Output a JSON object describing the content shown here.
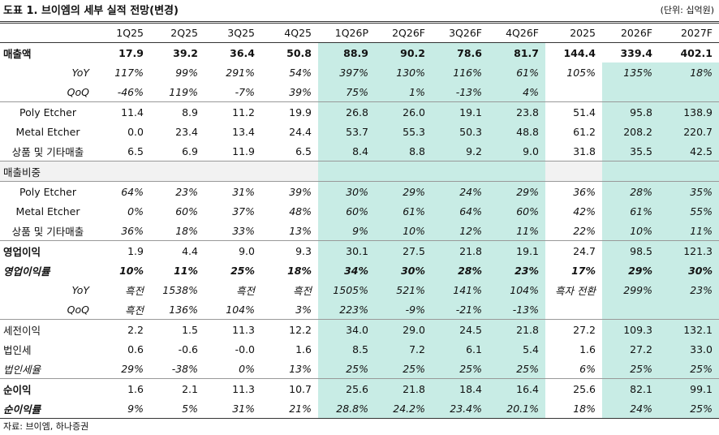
{
  "header": {
    "title": "도표 1. 브이엠의 세부 실적 전망(변경)",
    "unit": "(단위: 십억원)"
  },
  "table": {
    "columns": [
      "1Q25",
      "2Q25",
      "3Q25",
      "4Q25",
      "1Q26P",
      "2Q26F",
      "3Q26F",
      "4Q26F",
      "2025",
      "2026F",
      "2027F"
    ],
    "rows": [
      {
        "label": "매출액",
        "cells": [
          "17.9",
          "39.2",
          "36.4",
          "50.8",
          "88.9",
          "90.2",
          "78.6",
          "81.7",
          "144.4",
          "339.4",
          "402.1"
        ]
      },
      {
        "label": "YoY",
        "cells": [
          "117%",
          "99%",
          "291%",
          "54%",
          "397%",
          "130%",
          "116%",
          "61%",
          "105%",
          "135%",
          "18%"
        ]
      },
      {
        "label": "QoQ",
        "cells": [
          "-46%",
          "119%",
          "-7%",
          "39%",
          "75%",
          "1%",
          "-13%",
          "4%",
          null,
          null,
          null
        ]
      },
      {
        "label": "Poly Etcher",
        "cells": [
          "11.4",
          "8.9",
          "11.2",
          "19.9",
          "26.8",
          "26.0",
          "19.1",
          "23.8",
          "51.4",
          "95.8",
          "138.9"
        ]
      },
      {
        "label": "Metal Etcher",
        "cells": [
          "0.0",
          "23.4",
          "13.4",
          "24.4",
          "53.7",
          "55.3",
          "50.3",
          "48.8",
          "61.2",
          "208.2",
          "220.7"
        ]
      },
      {
        "label": "상품 및 기타매출",
        "cells": [
          "6.5",
          "6.9",
          "11.9",
          "6.5",
          "8.4",
          "8.8",
          "9.2",
          "9.0",
          "31.8",
          "35.5",
          "42.5"
        ]
      },
      {
        "label": "매출비중"
      },
      {
        "label": "Poly Etcher",
        "cells": [
          "64%",
          "23%",
          "31%",
          "39%",
          "30%",
          "29%",
          "24%",
          "29%",
          "36%",
          "28%",
          "35%"
        ]
      },
      {
        "label": "Metal Etcher",
        "cells": [
          "0%",
          "60%",
          "37%",
          "48%",
          "60%",
          "61%",
          "64%",
          "60%",
          "42%",
          "61%",
          "55%"
        ]
      },
      {
        "label": "상품 및 기타매출",
        "cells": [
          "36%",
          "18%",
          "33%",
          "13%",
          "9%",
          "10%",
          "12%",
          "11%",
          "22%",
          "10%",
          "11%"
        ]
      },
      {
        "label": "영업이익",
        "cells": [
          "1.9",
          "4.4",
          "9.0",
          "9.3",
          "30.1",
          "27.5",
          "21.8",
          "19.1",
          "24.7",
          "98.5",
          "121.3"
        ]
      },
      {
        "label": "영업이익률",
        "cells": [
          "10%",
          "11%",
          "25%",
          "18%",
          "34%",
          "30%",
          "28%",
          "23%",
          "17%",
          "29%",
          "30%"
        ]
      },
      {
        "label": "YoY",
        "cells": [
          "흑전",
          "1538%",
          "흑전",
          "흑전",
          "1505%",
          "521%",
          "141%",
          "104%",
          "흑자 전환",
          "299%",
          "23%"
        ]
      },
      {
        "label": "QoQ",
        "cells": [
          "흑전",
          "136%",
          "104%",
          "3%",
          "223%",
          "-9%",
          "-21%",
          "-13%",
          null,
          null,
          null
        ]
      },
      {
        "label": "세전이익",
        "cells": [
          "2.2",
          "1.5",
          "11.3",
          "12.2",
          "34.0",
          "29.0",
          "24.5",
          "21.8",
          "27.2",
          "109.3",
          "132.1"
        ]
      },
      {
        "label": "법인세",
        "cells": [
          "0.6",
          "-0.6",
          "-0.0",
          "1.6",
          "8.5",
          "7.2",
          "6.1",
          "5.4",
          "1.6",
          "27.2",
          "33.0"
        ]
      },
      {
        "label": "법인세율",
        "cells": [
          "29%",
          "-38%",
          "0%",
          "13%",
          "25%",
          "25%",
          "25%",
          "25%",
          "6%",
          "25%",
          "25%"
        ]
      },
      {
        "label": "순이익",
        "cells": [
          "1.6",
          "2.1",
          "11.3",
          "10.7",
          "25.6",
          "21.8",
          "18.4",
          "16.4",
          "25.6",
          "82.1",
          "99.1"
        ]
      },
      {
        "label": "순이익률",
        "cells": [
          "9%",
          "5%",
          "31%",
          "21%",
          "28.8%",
          "24.2%",
          "23.4%",
          "20.1%",
          "18%",
          "24%",
          "25%"
        ]
      }
    ]
  },
  "footer": {
    "source": "자료: 브이엠, 하나증권"
  }
}
